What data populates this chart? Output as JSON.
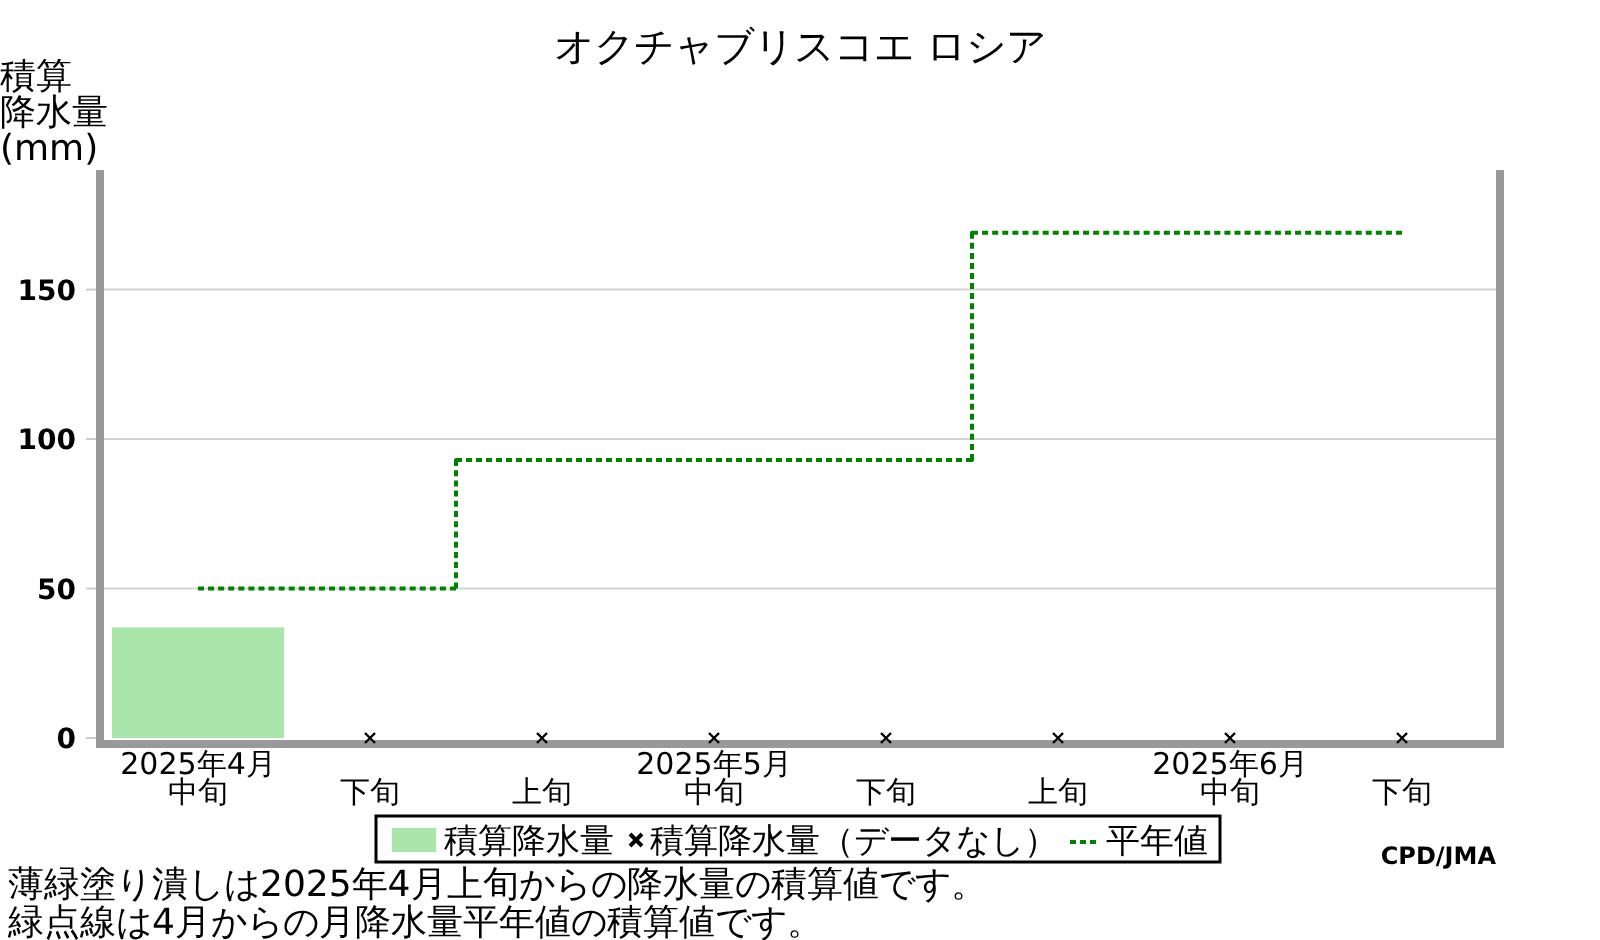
{
  "chart_data": {
    "type": "bar",
    "title": "オクチャブリスコエ ロシア",
    "ylabel": "積算降水量(mm)",
    "categories": [
      "2025年4月中旬",
      "下旬",
      "上旬",
      "2025年5月中旬",
      "下旬",
      "上旬",
      "2025年6月中旬",
      "下旬"
    ],
    "series": [
      {
        "name": "積算降水量",
        "color": "#aae6aa",
        "values": [
          37,
          null,
          null,
          null,
          null,
          null,
          null,
          null
        ]
      },
      {
        "name": "積算降水量（データなし）",
        "type": "scatter",
        "marker": "cross",
        "color": "#000000",
        "values": [
          null,
          0,
          0,
          0,
          0,
          0,
          0,
          0
        ]
      },
      {
        "name": "平年値",
        "type": "step",
        "color": "#008000",
        "line_style": "dotted",
        "values": [
          50,
          50,
          93,
          93,
          93,
          169,
          169,
          169
        ]
      }
    ],
    "ylim": [
      0,
      190
    ],
    "yticks": [
      0,
      50,
      100,
      150
    ],
    "grid": "y",
    "legend": "bottom",
    "annotations": [
      "CPD/JMA",
      "薄緑塗り潰しは2025年4月上旬からの降水量の積算値です。",
      "緑点線は4月からの月降水量平年値の積算値です。"
    ]
  }
}
